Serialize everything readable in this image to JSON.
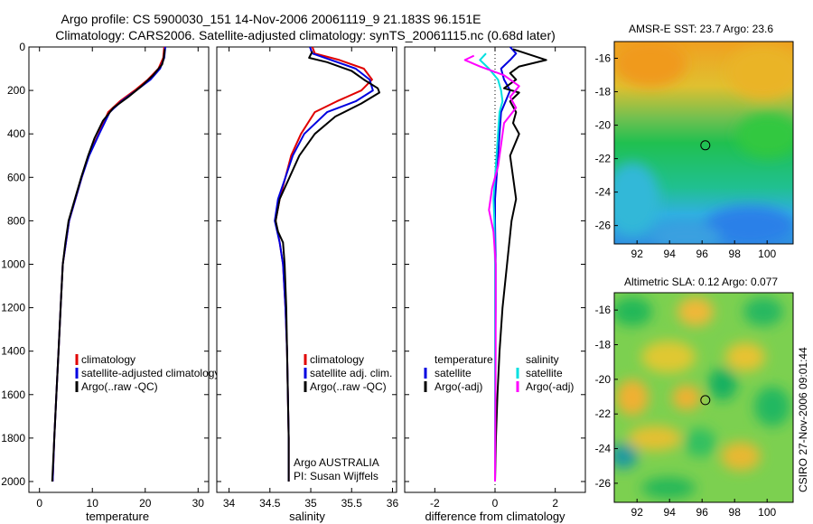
{
  "header": {
    "line1": "Argo profile: CS 5900030_151 14-Nov-2006 20061119_9 21.183S 96.151E",
    "line2": "Climatology: CARS2006. Satellite-adjusted climatology: synTS_20061115.nc (0.68d later)"
  },
  "side_label": "CSIRO 27-Nov-2006 09:01:44",
  "chart_data": [
    {
      "type": "line",
      "panel": "temperature",
      "xlabel": "temperature",
      "ylabel": "",
      "xlim": [
        -2,
        32
      ],
      "ylim": [
        2050,
        0
      ],
      "xticks": [
        0,
        10,
        20,
        30
      ],
      "yticks": [
        0,
        200,
        400,
        600,
        800,
        1000,
        1200,
        1400,
        1600,
        1800,
        2000
      ],
      "legend": {
        "position": "lower-right",
        "entries": [
          {
            "label": "climatology",
            "color": "#e00000"
          },
          {
            "label": "satellite-adjusted climatology",
            "color": "#0000e0"
          },
          {
            "label": "Argo(..raw -QC)",
            "color": "#000000"
          }
        ]
      },
      "series": [
        {
          "name": "climatology",
          "color": "#e00000",
          "points": [
            [
              23.6,
              0
            ],
            [
              23.4,
              50
            ],
            [
              22.5,
              100
            ],
            [
              20.5,
              150
            ],
            [
              18.0,
              200
            ],
            [
              15.2,
              250
            ],
            [
              13.0,
              300
            ],
            [
              11.2,
              400
            ],
            [
              9.3,
              500
            ],
            [
              8.0,
              600
            ],
            [
              6.8,
              700
            ],
            [
              5.6,
              800
            ],
            [
              5.0,
              900
            ],
            [
              4.4,
              1000
            ],
            [
              4.0,
              1200
            ],
            [
              3.6,
              1400
            ],
            [
              3.2,
              1600
            ],
            [
              2.8,
              1800
            ],
            [
              2.5,
              2000
            ]
          ]
        },
        {
          "name": "satellite-adjusted climatology",
          "color": "#0000e0",
          "points": [
            [
              23.8,
              0
            ],
            [
              23.6,
              50
            ],
            [
              22.8,
              100
            ],
            [
              21.0,
              150
            ],
            [
              18.3,
              200
            ],
            [
              15.5,
              250
            ],
            [
              13.3,
              300
            ],
            [
              11.3,
              400
            ],
            [
              9.4,
              500
            ],
            [
              8.0,
              600
            ],
            [
              6.8,
              700
            ],
            [
              5.6,
              800
            ],
            [
              5.0,
              900
            ],
            [
              4.4,
              1000
            ],
            [
              4.0,
              1200
            ],
            [
              3.6,
              1400
            ],
            [
              3.2,
              1600
            ],
            [
              2.8,
              1800
            ],
            [
              2.5,
              2000
            ]
          ]
        },
        {
          "name": "Argo(..raw -QC)",
          "color": "#000000",
          "points": [
            [
              23.7,
              10
            ],
            [
              23.5,
              50
            ],
            [
              23.2,
              80
            ],
            [
              21.5,
              130
            ],
            [
              19.3,
              180
            ],
            [
              16.8,
              230
            ],
            [
              14.0,
              280
            ],
            [
              12.0,
              340
            ],
            [
              10.4,
              420
            ],
            [
              9.2,
              500
            ],
            [
              7.9,
              600
            ],
            [
              6.7,
              700
            ],
            [
              5.5,
              800
            ],
            [
              4.9,
              900
            ],
            [
              4.4,
              1000
            ],
            [
              4.0,
              1200
            ],
            [
              3.6,
              1400
            ],
            [
              3.2,
              1600
            ],
            [
              2.8,
              1800
            ],
            [
              2.4,
              2000
            ]
          ]
        }
      ]
    },
    {
      "type": "line",
      "panel": "salinity",
      "xlabel": "salinity",
      "ylabel": "",
      "xlim": [
        33.85,
        36.05
      ],
      "ylim": [
        2050,
        0
      ],
      "xticks": [
        34,
        34.5,
        35,
        35.5,
        36
      ],
      "yticks": [
        0,
        200,
        400,
        600,
        800,
        1000,
        1200,
        1400,
        1600,
        1800,
        2000
      ],
      "legend": {
        "position": "lower-right",
        "entries": [
          {
            "label": "climatology",
            "color": "#e00000"
          },
          {
            "label": "satellite adj. clim.",
            "color": "#0000e0"
          },
          {
            "label": "Argo(..raw -QC)",
            "color": "#000000"
          }
        ]
      },
      "annotation": [
        "Argo AUSTRALIA",
        "PI: Susan Wijffels"
      ],
      "series": [
        {
          "name": "climatology",
          "color": "#e00000",
          "points": [
            [
              35.02,
              0
            ],
            [
              35.05,
              30
            ],
            [
              35.35,
              60
            ],
            [
              35.65,
              100
            ],
            [
              35.75,
              150
            ],
            [
              35.62,
              200
            ],
            [
              35.32,
              250
            ],
            [
              35.05,
              300
            ],
            [
              34.88,
              400
            ],
            [
              34.76,
              500
            ],
            [
              34.69,
              600
            ],
            [
              34.62,
              700
            ],
            [
              34.57,
              800
            ],
            [
              34.62,
              900
            ],
            [
              34.66,
              1000
            ],
            [
              34.69,
              1200
            ],
            [
              34.71,
              1400
            ],
            [
              34.72,
              1600
            ],
            [
              34.73,
              1800
            ],
            [
              34.73,
              2000
            ]
          ]
        },
        {
          "name": "satellite adj. clim.",
          "color": "#0000e0",
          "points": [
            [
              34.99,
              0
            ],
            [
              35.02,
              30
            ],
            [
              35.25,
              60
            ],
            [
              35.55,
              100
            ],
            [
              35.72,
              150
            ],
            [
              35.76,
              200
            ],
            [
              35.55,
              250
            ],
            [
              35.2,
              300
            ],
            [
              34.92,
              400
            ],
            [
              34.78,
              500
            ],
            [
              34.69,
              600
            ],
            [
              34.6,
              700
            ],
            [
              34.56,
              800
            ],
            [
              34.62,
              900
            ],
            [
              34.66,
              1000
            ],
            [
              34.69,
              1200
            ],
            [
              34.71,
              1400
            ],
            [
              34.72,
              1600
            ],
            [
              34.73,
              1800
            ],
            [
              34.73,
              2000
            ]
          ]
        },
        {
          "name": "Argo(..raw -QC)",
          "color": "#000000",
          "points": [
            [
              35.02,
              20
            ],
            [
              34.98,
              50
            ],
            [
              35.2,
              70
            ],
            [
              35.5,
              110
            ],
            [
              35.65,
              150
            ],
            [
              35.82,
              190
            ],
            [
              35.84,
              210
            ],
            [
              35.62,
              260
            ],
            [
              35.3,
              320
            ],
            [
              35.05,
              400
            ],
            [
              34.86,
              500
            ],
            [
              34.74,
              600
            ],
            [
              34.62,
              700
            ],
            [
              34.57,
              800
            ],
            [
              34.6,
              850
            ],
            [
              34.66,
              900
            ],
            [
              34.68,
              1000
            ],
            [
              34.7,
              1200
            ],
            [
              34.71,
              1400
            ],
            [
              34.72,
              1600
            ],
            [
              34.73,
              1800
            ],
            [
              34.73,
              2000
            ]
          ]
        }
      ]
    },
    {
      "type": "line",
      "panel": "difference",
      "xlabel": "difference from climatology",
      "ylabel": "",
      "xlim": [
        -3,
        3
      ],
      "ylim": [
        2050,
        0
      ],
      "xticks": [
        -2,
        0,
        2
      ],
      "yticks": [
        0,
        200,
        400,
        600,
        800,
        1000,
        1200,
        1400,
        1600,
        1800,
        2000
      ],
      "legend": {
        "position": "lower",
        "columns": [
          {
            "header": "temperature",
            "entries": [
              {
                "label": "satellite",
                "color": "#0000e0"
              },
              {
                "label": "Argo(-adj)",
                "color": "#000000"
              }
            ]
          },
          {
            "header": "salinity",
            "entries": [
              {
                "label": "satellite",
                "color": "#00e0e0"
              },
              {
                "label": "Argo(-adj)",
                "color": "#ff00ff"
              }
            ]
          }
        ]
      },
      "series": [
        {
          "name": "temperature satellite",
          "color": "#0000e0",
          "points": [
            [
              0.5,
              0
            ],
            [
              0.7,
              30
            ],
            [
              0.5,
              60
            ],
            [
              0.2,
              100
            ],
            [
              0.3,
              150
            ],
            [
              0.5,
              200
            ],
            [
              0.35,
              250
            ],
            [
              0.2,
              300
            ],
            [
              0.15,
              400
            ],
            [
              0.1,
              500
            ],
            [
              0.05,
              600
            ],
            [
              0.0,
              700
            ],
            [
              0.0,
              800
            ],
            [
              0.02,
              1000
            ],
            [
              0.02,
              1200
            ],
            [
              0.01,
              1400
            ],
            [
              0.0,
              1600
            ],
            [
              0.0,
              1800
            ],
            [
              0.0,
              2000
            ]
          ]
        },
        {
          "name": "temperature Argo(-adj)",
          "color": "#000000",
          "points": [
            [
              0.6,
              10
            ],
            [
              1.7,
              60
            ],
            [
              0.8,
              90
            ],
            [
              0.5,
              120
            ],
            [
              0.7,
              150
            ],
            [
              0.3,
              190
            ],
            [
              0.8,
              210
            ],
            [
              0.5,
              250
            ],
            [
              0.7,
              300
            ],
            [
              0.6,
              350
            ],
            [
              0.8,
              400
            ],
            [
              0.5,
              500
            ],
            [
              0.6,
              600
            ],
            [
              0.7,
              700
            ],
            [
              0.55,
              800
            ],
            [
              0.4,
              1000
            ],
            [
              0.25,
              1200
            ],
            [
              0.15,
              1400
            ],
            [
              0.08,
              1600
            ],
            [
              0.03,
              1800
            ],
            [
              0.0,
              2000
            ]
          ]
        },
        {
          "name": "salinity satellite",
          "color": "#00e0e0",
          "points": [
            [
              -0.3,
              30
            ],
            [
              -0.5,
              60
            ],
            [
              -0.2,
              100
            ],
            [
              0.1,
              150
            ],
            [
              0.2,
              200
            ],
            [
              0.25,
              250
            ],
            [
              0.15,
              300
            ],
            [
              0.1,
              400
            ],
            [
              0.05,
              500
            ],
            [
              0.0,
              600
            ],
            [
              -0.05,
              700
            ],
            [
              -0.02,
              800
            ],
            [
              0.0,
              1000
            ],
            [
              0.0,
              1400
            ],
            [
              0.0,
              2000
            ]
          ]
        },
        {
          "name": "salinity Argo(-adj)",
          "color": "#ff00ff",
          "points": [
            [
              -0.7,
              40
            ],
            [
              -1.0,
              60
            ],
            [
              -0.5,
              90
            ],
            [
              0.3,
              130
            ],
            [
              0.8,
              180
            ],
            [
              0.5,
              230
            ],
            [
              0.7,
              280
            ],
            [
              0.3,
              350
            ],
            [
              0.2,
              450
            ],
            [
              0.1,
              550
            ],
            [
              -0.1,
              650
            ],
            [
              -0.2,
              750
            ],
            [
              -0.05,
              850
            ],
            [
              0.02,
              1000
            ],
            [
              0.02,
              1400
            ],
            [
              0.0,
              2000
            ]
          ]
        }
      ]
    },
    {
      "type": "heatmap",
      "panel": "sst-map",
      "title": "AMSR-E SST: 23.7  Argo: 23.6",
      "xlim": [
        90.6,
        101.6
      ],
      "ylim": [
        -27.1,
        -15.0
      ],
      "xticks": [
        92,
        94,
        96,
        98,
        100
      ],
      "yticks": [
        -16,
        -18,
        -20,
        -22,
        -24,
        -26
      ],
      "marker": {
        "lon": 96.2,
        "lat": -21.2
      }
    },
    {
      "type": "heatmap",
      "panel": "sla-map",
      "title": "Altimetric SLA: 0.12  Argo: 0.077",
      "xlim": [
        90.6,
        101.6
      ],
      "ylim": [
        -27.1,
        -15.0
      ],
      "xticks": [
        92,
        94,
        96,
        98,
        100
      ],
      "yticks": [
        -16,
        -18,
        -20,
        -22,
        -24,
        -26
      ],
      "marker": {
        "lon": 96.2,
        "lat": -21.2
      }
    }
  ]
}
